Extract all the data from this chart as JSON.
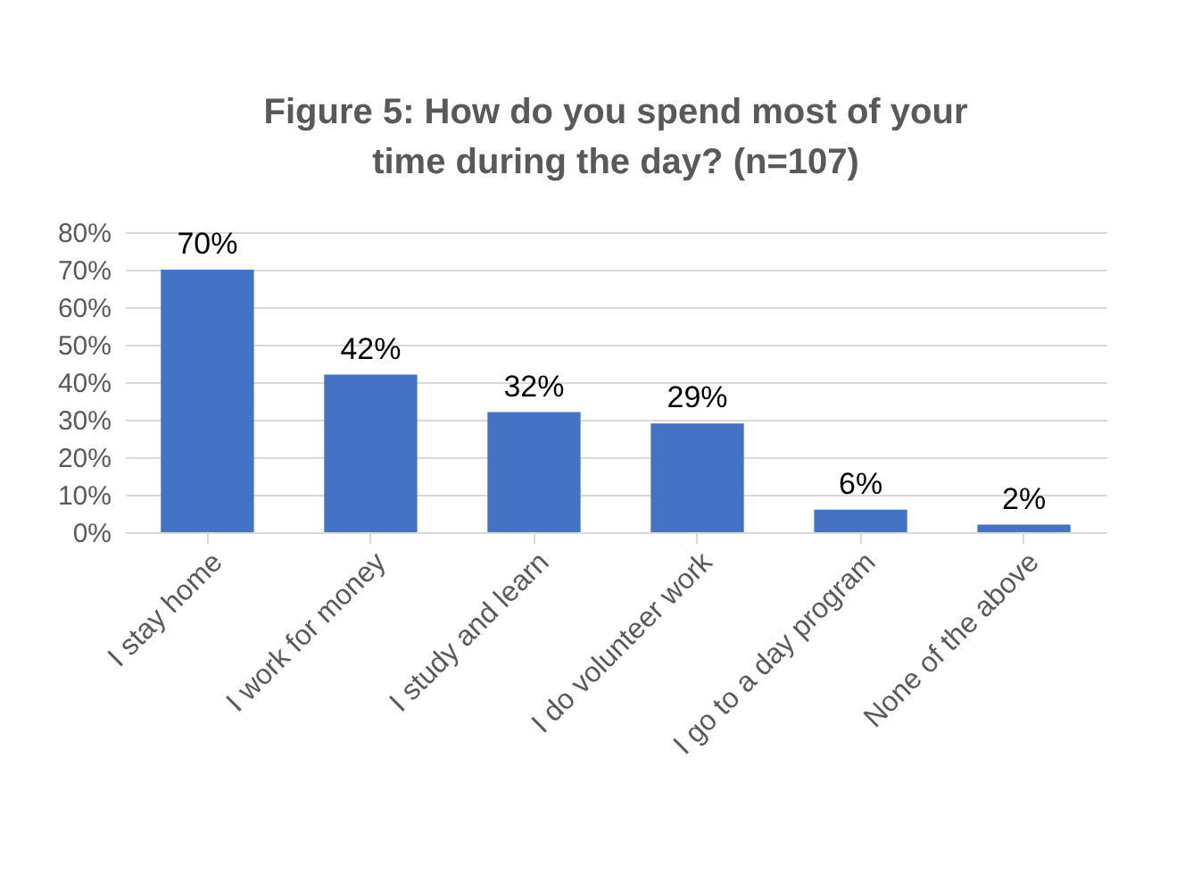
{
  "chart_data": {
    "type": "bar",
    "title": "Figure 5: How do you spend most of your time during the day? (n=107)",
    "categories": [
      "I stay home",
      "I work for money",
      "I study and learn",
      "I do volunteer work",
      "I go to a day program",
      "None of the above"
    ],
    "values": [
      70,
      42,
      32,
      29,
      6,
      2
    ],
    "value_labels": [
      "70%",
      "42%",
      "32%",
      "29%",
      "6%",
      "2%"
    ],
    "color": "#4472c4",
    "ylim": [
      0,
      80
    ],
    "yticks": [
      {
        "value": 0,
        "label": "0%"
      },
      {
        "value": 10,
        "label": "10%"
      },
      {
        "value": 20,
        "label": "20%"
      },
      {
        "value": 30,
        "label": "30%"
      },
      {
        "value": 40,
        "label": "40%"
      },
      {
        "value": 50,
        "label": "50%"
      },
      {
        "value": 60,
        "label": "60%"
      },
      {
        "value": 70,
        "label": "70%"
      },
      {
        "value": 80,
        "label": "80%"
      }
    ],
    "grid": "y"
  }
}
